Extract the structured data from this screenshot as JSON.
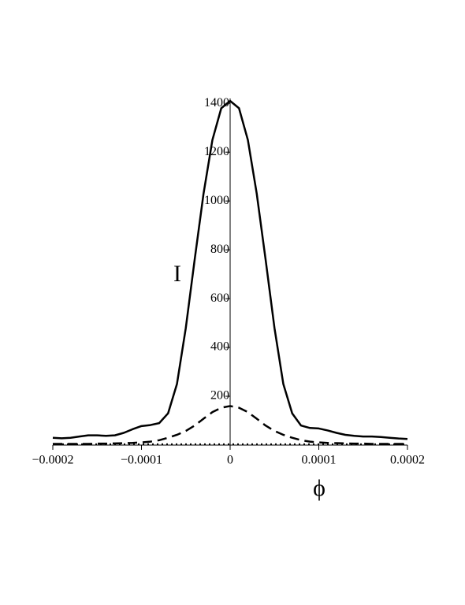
{
  "chart_data": {
    "type": "line",
    "x_label": "ϕ",
    "y_label": "I",
    "x": [
      -0.0002,
      -0.00019,
      -0.00018,
      -0.00017,
      -0.00016,
      -0.00015,
      -0.00014,
      -0.00013,
      -0.00012,
      -0.00011,
      -0.0001,
      -9e-05,
      -8e-05,
      -7e-05,
      -6e-05,
      -5e-05,
      -4e-05,
      -3e-05,
      -2e-05,
      -1e-05,
      0,
      1e-05,
      2e-05,
      3e-05,
      4e-05,
      5e-05,
      6e-05,
      7e-05,
      8e-05,
      9e-05,
      0.0001,
      0.00011,
      0.00012,
      0.00013,
      0.00014,
      0.00015,
      0.00016,
      0.00017,
      0.00018,
      0.00019,
      0.0002
    ],
    "series": [
      {
        "color": "#000000",
        "dash": "solid",
        "values": [
          30,
          28,
          30,
          35,
          40,
          40,
          38,
          40,
          50,
          65,
          78,
          82,
          90,
          130,
          250,
          480,
          760,
          1030,
          1250,
          1380,
          1410,
          1380,
          1250,
          1030,
          760,
          480,
          250,
          130,
          80,
          70,
          68,
          60,
          50,
          42,
          38,
          35,
          35,
          33,
          30,
          27,
          25
        ]
      },
      {
        "color": "#000000",
        "dash": "dashed",
        "values": [
          5,
          5,
          5,
          5,
          5,
          6,
          6,
          7,
          8,
          9,
          11,
          14,
          20,
          30,
          42,
          58,
          80,
          108,
          135,
          153,
          160,
          153,
          135,
          108,
          80,
          58,
          42,
          30,
          20,
          14,
          11,
          9,
          8,
          7,
          6,
          6,
          5,
          5,
          5,
          5,
          5
        ]
      },
      {
        "color": "#000000",
        "dash": "dotted",
        "values": [
          3,
          3,
          3,
          3,
          3,
          3,
          3,
          3,
          3,
          3,
          3,
          3,
          3,
          3,
          3,
          3,
          3,
          3,
          3,
          3,
          3,
          3,
          3,
          3,
          3,
          3,
          3,
          3,
          3,
          3,
          3,
          3,
          3,
          3,
          3,
          3,
          3,
          3,
          3,
          3,
          3
        ]
      }
    ],
    "xlim": [
      -0.0002,
      0.0002
    ],
    "xticks": [
      {
        "value": -0.0002,
        "label": "−0.0002"
      },
      {
        "value": -0.0001,
        "label": "−0.0001"
      },
      0,
      0.0001,
      0.0002
    ],
    "ylim": [
      0,
      1420
    ],
    "yticks": [
      200,
      400,
      600,
      800,
      1000,
      1200,
      1400
    ]
  }
}
